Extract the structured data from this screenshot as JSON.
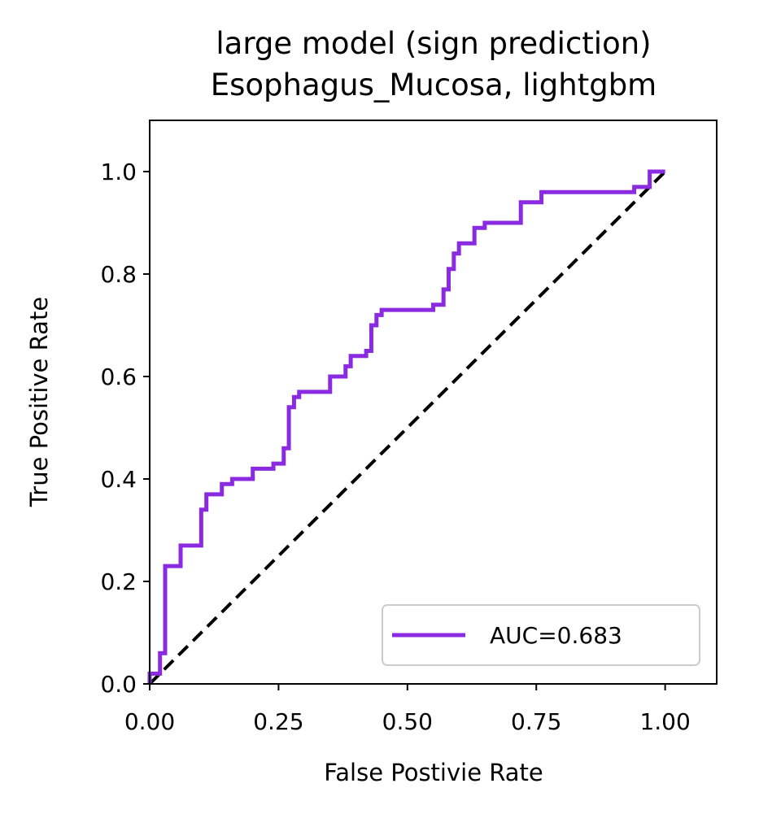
{
  "chart_data": {
    "type": "line",
    "title_line1": "large model (sign prediction)",
    "title_line2": "Esophagus_Mucosa, lightgbm",
    "xlabel": "False Postivie Rate",
    "ylabel": "True Positive Rate",
    "xlim": [
      0,
      1.1
    ],
    "ylim": [
      0,
      1.1
    ],
    "xticks": [
      0.0,
      0.25,
      0.5,
      0.75,
      1.0
    ],
    "xtick_labels": [
      "0.00",
      "0.25",
      "0.50",
      "0.75",
      "1.00"
    ],
    "yticks": [
      0.0,
      0.2,
      0.4,
      0.6,
      0.8,
      1.0
    ],
    "ytick_labels": [
      "0.0",
      "0.2",
      "0.4",
      "0.6",
      "0.8",
      "1.0"
    ],
    "grid": false,
    "legend_position": "lower right",
    "series": [
      {
        "name": "AUC=0.683",
        "color": "#8a2be2",
        "style": "step",
        "x": [
          0.0,
          0.0,
          0.02,
          0.02,
          0.03,
          0.03,
          0.04,
          0.04,
          0.06,
          0.06,
          0.1,
          0.1,
          0.11,
          0.11,
          0.14,
          0.14,
          0.16,
          0.16,
          0.2,
          0.2,
          0.24,
          0.24,
          0.26,
          0.26,
          0.27,
          0.27,
          0.28,
          0.28,
          0.29,
          0.29,
          0.35,
          0.35,
          0.38,
          0.38,
          0.39,
          0.39,
          0.42,
          0.42,
          0.43,
          0.43,
          0.44,
          0.44,
          0.45,
          0.45,
          0.55,
          0.55,
          0.57,
          0.57,
          0.58,
          0.58,
          0.59,
          0.59,
          0.6,
          0.6,
          0.61,
          0.61,
          0.63,
          0.63,
          0.65,
          0.65,
          0.72,
          0.72,
          0.76,
          0.76,
          0.94,
          0.94,
          0.97,
          0.97,
          1.0
        ],
        "y": [
          0.0,
          0.02,
          0.02,
          0.06,
          0.06,
          0.23,
          0.23,
          0.23,
          0.23,
          0.27,
          0.27,
          0.34,
          0.34,
          0.37,
          0.37,
          0.39,
          0.39,
          0.4,
          0.4,
          0.42,
          0.42,
          0.43,
          0.43,
          0.46,
          0.46,
          0.54,
          0.54,
          0.56,
          0.56,
          0.57,
          0.57,
          0.6,
          0.6,
          0.62,
          0.62,
          0.64,
          0.64,
          0.65,
          0.65,
          0.7,
          0.7,
          0.72,
          0.72,
          0.73,
          0.73,
          0.74,
          0.74,
          0.77,
          0.77,
          0.81,
          0.81,
          0.84,
          0.84,
          0.86,
          0.86,
          0.86,
          0.86,
          0.89,
          0.89,
          0.9,
          0.9,
          0.94,
          0.94,
          0.96,
          0.96,
          0.97,
          0.97,
          1.0,
          1.0
        ]
      },
      {
        "name": "",
        "color": "#000000",
        "style": "dashed",
        "x": [
          0,
          1
        ],
        "y": [
          0,
          1
        ]
      }
    ]
  }
}
